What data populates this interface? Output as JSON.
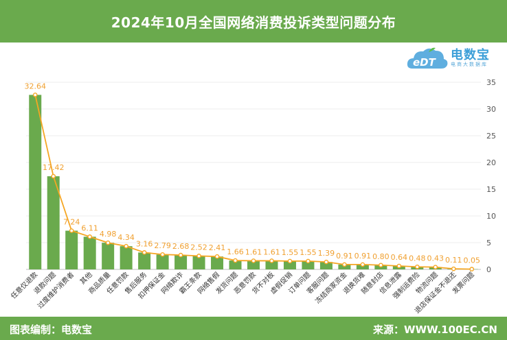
{
  "header": {
    "title": "2024年10月全国网络消费投诉类型问题分布"
  },
  "logo": {
    "name": "电数宝",
    "letters": "eDT",
    "tagline": "电商大数据库"
  },
  "footer": {
    "left": "图表编制：电数宝",
    "right": "来源：WWW.100EC.CN"
  },
  "colors": {
    "bar": "#6aaa4d",
    "line": "#f5a623",
    "banner": "#6aaa4d",
    "value_label": "#f0a030"
  },
  "chart_data": {
    "type": "bar",
    "categories": [
      "任意仅退款",
      "退款问题",
      "过度维护消费者",
      "其他",
      "商品质量",
      "任意罚款",
      "售后服务",
      "扣押保证金",
      "网络欺诈",
      "霸王条款",
      "网络售假",
      "发货问题",
      "恶意罚款",
      "货不对板",
      "虚假促销",
      "订单问题",
      "客服问题",
      "冻结商家资金",
      "退换货难",
      "随意封店",
      "信息泄露",
      "强制运费险",
      "物流问题",
      "退店保证金不退还",
      "发票问题"
    ],
    "series": [
      {
        "type": "bar",
        "values": [
          32.64,
          17.42,
          7.24,
          6.11,
          4.98,
          4.34,
          3.16,
          2.79,
          2.68,
          2.52,
          2.41,
          1.66,
          1.61,
          1.61,
          1.55,
          1.55,
          1.39,
          0.91,
          0.91,
          0.8,
          0.64,
          0.48,
          0.43,
          0.11,
          0.05
        ]
      },
      {
        "type": "line",
        "values": [
          32.64,
          17.42,
          7.24,
          6.11,
          4.98,
          4.34,
          3.16,
          2.79,
          2.68,
          2.52,
          2.41,
          1.66,
          1.61,
          1.61,
          1.55,
          1.55,
          1.39,
          0.91,
          0.91,
          0.8,
          0.64,
          0.48,
          0.43,
          0.11,
          0.05
        ]
      }
    ],
    "value_labels": [
      "32.64",
      "17.42",
      "7.24",
      "6.11",
      "4.98",
      "4.34",
      "3.16",
      "2.79",
      "2.68",
      "2.52",
      "2.41",
      "1.66",
      "1.61",
      "1.61",
      "1.55",
      "1.55",
      "1.39",
      "0.91",
      "0.91",
      "0.80",
      "0.64",
      "0.48",
      "0.43",
      "0.11",
      "0.05"
    ],
    "ylim": [
      0,
      35
    ],
    "yticks": [
      "0",
      "5",
      "10",
      "15",
      "20",
      "25",
      "30",
      "35"
    ],
    "y_axis_side": "right",
    "grid": true,
    "legend": "none"
  }
}
